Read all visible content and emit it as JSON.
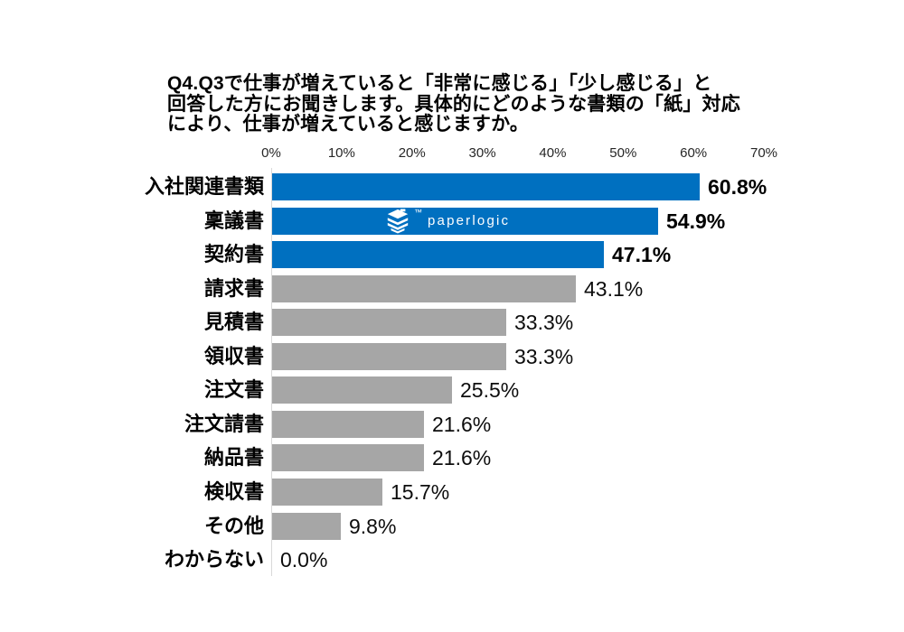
{
  "page": {
    "background": "#ffffff"
  },
  "title": "Q4.Q3で仕事が増えていると「非常に感じる」「少し感じる」と\n回答した方にお聞きします。具体的にどのような書類の「紙」対応\nにより、仕事が増えていると感じますか。",
  "watermark": {
    "text": "paperlogic",
    "trademark": "™"
  },
  "chart_data": {
    "type": "bar",
    "orientation": "horizontal",
    "title": "Q4.Q3で仕事が増えていると「非常に感じる」「少し感じる」と回答した方にお聞きします。具体的にどのような書類の「紙」対応により、仕事が増えていると感じますか。",
    "categories": [
      "入社関連書類",
      "稟議書",
      "契約書",
      "請求書",
      "見積書",
      "領収書",
      "注文書",
      "注文請書",
      "納品書",
      "検収書",
      "その他",
      "わからない"
    ],
    "values": [
      60.8,
      54.9,
      47.1,
      43.1,
      33.3,
      33.3,
      25.5,
      21.6,
      21.6,
      15.7,
      9.8,
      0.0
    ],
    "value_labels": [
      "60.8%",
      "54.9%",
      "47.1%",
      "43.1%",
      "33.3%",
      "33.3%",
      "25.5%",
      "21.6%",
      "21.6%",
      "15.7%",
      "9.8%",
      "0.0%"
    ],
    "xlim": [
      0,
      70
    ],
    "x_ticks": [
      "0%",
      "10%",
      "20%",
      "30%",
      "40%",
      "50%",
      "60%",
      "70%"
    ],
    "grid": false,
    "legend": false,
    "highlight_count": 3,
    "colors": {
      "highlight": "#0070C0",
      "default": "#A6A6A6"
    }
  }
}
